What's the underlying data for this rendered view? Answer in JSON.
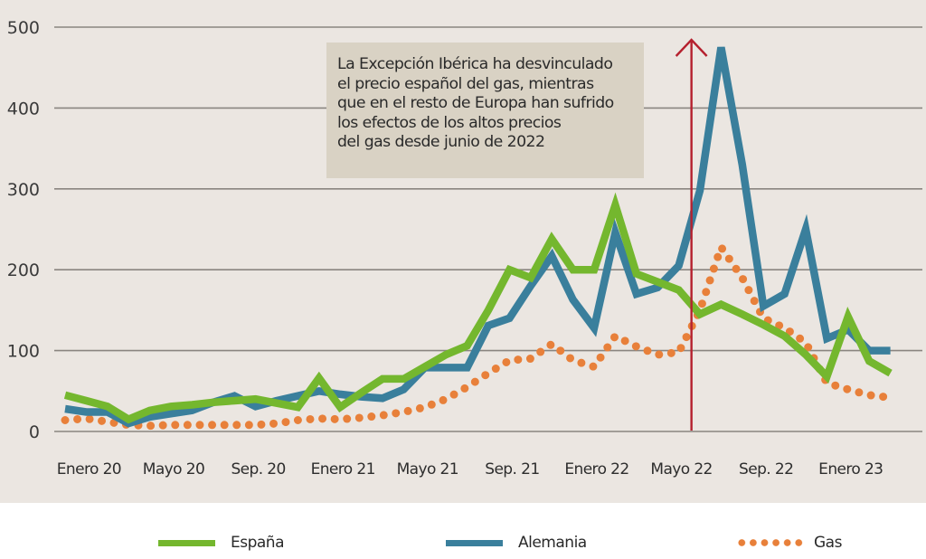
{
  "chart_data": {
    "type": "line",
    "title": "",
    "xlabel": "",
    "ylabel": "",
    "ylim": [
      0,
      500
    ],
    "yticks": [
      "0",
      "100",
      "200",
      "300",
      "400",
      "500"
    ],
    "ytick_values": [
      0,
      100,
      200,
      300,
      400,
      500
    ],
    "grid": true,
    "legend_position": "bottom",
    "x": [
      "Dic 19",
      "Ene 20",
      "Feb 20",
      "Mar 20",
      "Abr 20",
      "May 20",
      "Jun 20",
      "Jul 20",
      "Ago 20",
      "Sep 20",
      "Oct 20",
      "Nov 20",
      "Dic 20",
      "Ene 21",
      "Feb 21",
      "Mar 21",
      "Abr 21",
      "May 21",
      "Jun 21",
      "Jul 21",
      "Ago 21",
      "Sep 21",
      "Oct 21",
      "Nov 21",
      "Dic 21",
      "Ene 22",
      "Feb 22",
      "Mar 22",
      "Abr 22",
      "May 22",
      "Jun 22",
      "Jul 22",
      "Ago 22",
      "Sep 22",
      "Oct 22",
      "Nov 22",
      "Dic 22",
      "Ene 23",
      "Feb 23",
      "Mar 23"
    ],
    "xtick_labels": [
      {
        "label": "Enero 20",
        "index": 1
      },
      {
        "label": "Mayo 20",
        "index": 5
      },
      {
        "label": "Sep. 20",
        "index": 9
      },
      {
        "label": "Enero 21",
        "index": 13
      },
      {
        "label": "Mayo 21",
        "index": 17
      },
      {
        "label": "Sep. 21",
        "index": 21
      },
      {
        "label": "Enero 22",
        "index": 25
      },
      {
        "label": "Mayo 22",
        "index": 29
      },
      {
        "label": "Sep. 22",
        "index": 33
      },
      {
        "label": "Enero 23",
        "index": 37
      }
    ],
    "series": [
      {
        "name": "España",
        "color": "#74b72e",
        "style": "solid",
        "values": [
          45,
          38,
          31,
          15,
          26,
          31,
          33,
          36,
          38,
          40,
          35,
          30,
          66,
          30,
          48,
          65,
          65,
          80,
          95,
          106,
          150,
          200,
          190,
          238,
          200,
          200,
          280,
          195,
          185,
          175,
          145,
          157,
          145,
          132,
          118,
          95,
          68,
          142,
          87,
          72
        ]
      },
      {
        "name": "Alemania",
        "color": "#3a7f9c",
        "style": "solid",
        "values": [
          28,
          24,
          24,
          10,
          18,
          22,
          26,
          36,
          44,
          31,
          38,
          44,
          50,
          46,
          43,
          41,
          52,
          79,
          79,
          79,
          131,
          140,
          180,
          217,
          163,
          128,
          246,
          170,
          178,
          205,
          298,
          475,
          330,
          155,
          170,
          250,
          115,
          126,
          100,
          100
        ]
      },
      {
        "name": "Gas",
        "color": "#e8803a",
        "style": "dotted",
        "values": [
          14,
          16,
          12,
          8,
          7,
          8,
          8,
          8,
          8,
          8,
          10,
          14,
          16,
          15,
          17,
          20,
          24,
          30,
          40,
          55,
          72,
          88,
          90,
          108,
          88,
          80,
          118,
          105,
          95,
          98,
          150,
          228,
          190,
          140,
          128,
          110,
          60,
          52,
          45,
          42
        ]
      }
    ],
    "annotation": {
      "lines": [
        "La Excepción Ibérica ha desvinculado",
        "el precio español del gas, mientras",
        "que en el resto de Europa han sufrido",
        "los efectos de los altos precios",
        "del gas desde junio de 2022"
      ],
      "marker_index": 29.6,
      "marker_color": "#b5202e"
    },
    "background": "#ebe6e1",
    "annotation_background": "#d9d2c4",
    "grid_color": "#8a8580"
  },
  "legend": [
    {
      "label": "España",
      "color": "#74b72e"
    },
    {
      "label": "Alemania",
      "color": "#3a7f9c"
    },
    {
      "label": "Gas",
      "color": "#e8803a"
    }
  ]
}
